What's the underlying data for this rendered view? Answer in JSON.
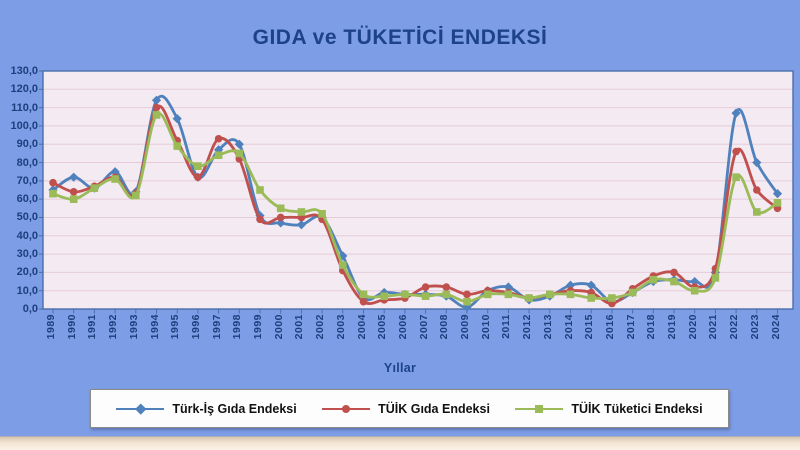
{
  "title": "GIDA ve TÜKETİCİ ENDEKSİ",
  "x_axis_title": "Yıllar",
  "colors": {
    "background": "#7d9de6",
    "plot_background": "#f3eaf2",
    "gridline": "#e6ccd9",
    "frame": "#4a6fa8",
    "title_text": "#1d4289",
    "axis_text": "#1e3f7d",
    "legend_text": "#111111",
    "series_blue": "#4f81bd",
    "series_red": "#c0504d",
    "series_green": "#9bbb59"
  },
  "chart_data": {
    "type": "line",
    "title": "GIDA ve TÜKETİCİ ENDEKSİ",
    "xlabel": "Yıllar",
    "ylabel": "",
    "ylim": [
      0,
      130
    ],
    "ytick_step": 10,
    "ytick_labels": [
      "0,0",
      "10,0",
      "20,0",
      "30,0",
      "40,0",
      "50,0",
      "60,0",
      "70,0",
      "80,0",
      "90,0",
      "100,0",
      "110,0",
      "120,0",
      "130,0"
    ],
    "grid": true,
    "legend_position": "bottom",
    "line_style": "smoothed",
    "categories": [
      "1989",
      "1990",
      "1991",
      "1992",
      "1993",
      "1994",
      "1995",
      "1996",
      "1997",
      "1998",
      "1999",
      "2000",
      "2001",
      "2002",
      "2003",
      "2004",
      "2005",
      "2006",
      "2007",
      "2008",
      "2009",
      "2010",
      "2011",
      "2012",
      "2013",
      "2014",
      "2015",
      "2016",
      "2017",
      "2018",
      "2019",
      "2020",
      "2021",
      "2022",
      "2023",
      "2024"
    ],
    "series": [
      {
        "name": "Türk-İş Gıda Endeksi",
        "color": "#4f81bd",
        "marker": "diamond",
        "values": [
          65,
          72,
          66,
          75,
          64,
          114,
          104,
          72,
          87,
          90,
          51,
          47,
          46,
          50,
          29,
          6,
          9,
          8,
          8,
          7,
          1,
          10,
          12,
          5,
          7,
          13,
          13,
          4,
          9,
          15,
          16,
          15,
          20,
          107,
          80,
          63
        ]
      },
      {
        "name": "TÜİK Gıda Endeksi",
        "color": "#c0504d",
        "marker": "circle",
        "values": [
          69,
          64,
          67,
          72,
          63,
          110,
          92,
          72,
          93,
          82,
          49,
          50,
          50,
          49,
          21,
          4,
          5,
          6,
          12,
          12,
          8,
          10,
          9,
          6,
          8,
          10,
          9,
          3,
          11,
          18,
          20,
          12,
          22,
          86,
          65,
          55
        ]
      },
      {
        "name": "TÜİK Tüketici Endeksi",
        "color": "#9bbb59",
        "marker": "square",
        "values": [
          63,
          60,
          66,
          71,
          62,
          106,
          89,
          78,
          84,
          85,
          65,
          55,
          53,
          52,
          24,
          8,
          7,
          8,
          7,
          8,
          4,
          8,
          8,
          6,
          8,
          8,
          6,
          6,
          9,
          16,
          15,
          10,
          17,
          72,
          53,
          58
        ]
      }
    ]
  }
}
